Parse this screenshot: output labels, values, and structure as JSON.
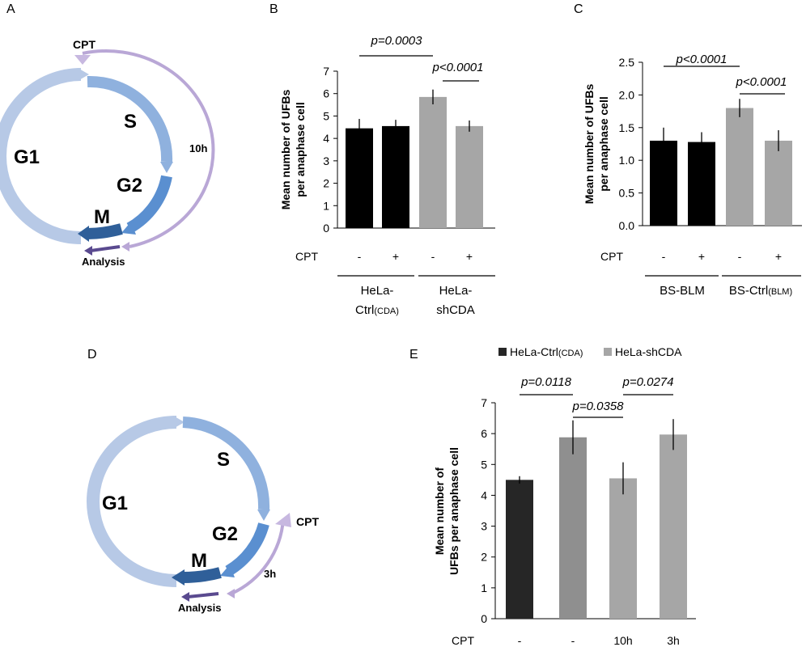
{
  "panels": {
    "A": "A",
    "B": "B",
    "C": "C",
    "D": "D",
    "E": "E"
  },
  "colors": {
    "g1": "#b7c9e6",
    "s": "#8fb1de",
    "g2": "#5a8fd0",
    "m": "#2f5f99",
    "cpt": "#b9a7d6",
    "analysis": "#5a4a8f",
    "black": "#000000",
    "lightgray": "#a6a6a6",
    "darkgray": "#8f8f8f",
    "barE1": "#262626"
  },
  "cycleA": {
    "g1": "G1",
    "s": "S",
    "g2": "G2",
    "m": "M",
    "cpt": "CPT",
    "time": "10h",
    "analysis": "Analysis"
  },
  "cycleD": {
    "g1": "G1",
    "s": "S",
    "g2": "G2",
    "m": "M",
    "cpt": "CPT",
    "time": "3h",
    "analysis": "Analysis"
  },
  "chart_data": [
    {
      "panel": "B",
      "type": "bar",
      "ylabel_line1": "Mean number of UFBs",
      "ylabel_line2": "per anaphase cell",
      "ylim": [
        0,
        7
      ],
      "yticks": [
        "0",
        "1",
        "2",
        "3",
        "4",
        "5",
        "6",
        "7"
      ],
      "row_label": "CPT",
      "categories": [
        "-",
        "+",
        "-",
        "+"
      ],
      "values": [
        4.45,
        4.55,
        5.85,
        4.55
      ],
      "errors": [
        0.42,
        0.28,
        0.33,
        0.25
      ],
      "bar_colors": [
        "#000000",
        "#000000",
        "#a6a6a6",
        "#a6a6a6"
      ],
      "groups": [
        {
          "line1": "HeLa-",
          "line2": "Ctrl",
          "line2_small": "(CDA)"
        },
        {
          "line1": "HeLa-",
          "line2": "shCDA",
          "line2_small": ""
        }
      ],
      "pvalues": [
        "p=0.0003",
        "p<0.0001"
      ]
    },
    {
      "panel": "C",
      "type": "bar",
      "ylabel_line1": "Mean number of UFBs",
      "ylabel_line2": "per anaphase cell",
      "ylim": [
        0,
        2.5
      ],
      "yticks": [
        "0.0",
        "0.5",
        "1.0",
        "1.5",
        "2.0",
        "2.5"
      ],
      "row_label": "CPT",
      "categories": [
        "-",
        "+",
        "-",
        "+"
      ],
      "values": [
        1.3,
        1.28,
        1.8,
        1.3
      ],
      "errors": [
        0.2,
        0.15,
        0.14,
        0.16
      ],
      "bar_colors": [
        "#000000",
        "#000000",
        "#a6a6a6",
        "#a6a6a6"
      ],
      "groups": [
        {
          "line1": "BS-BLM",
          "line2": "",
          "line2_small": ""
        },
        {
          "line1": "BS-Ctrl",
          "line2": "",
          "line2_small": "(BLM)"
        }
      ],
      "pvalues": [
        "p<0.0001",
        "p<0.0001"
      ]
    },
    {
      "panel": "E",
      "type": "bar",
      "ylabel_line1": "Mean number of",
      "ylabel_line2": "UFBs per  anaphase cell",
      "ylim": [
        0,
        7
      ],
      "yticks": [
        "0",
        "1",
        "2",
        "3",
        "4",
        "5",
        "6",
        "7"
      ],
      "row_label": "CPT",
      "categories": [
        "-",
        "-",
        "10h",
        "3h"
      ],
      "values": [
        4.5,
        5.88,
        4.55,
        5.97
      ],
      "errors": [
        0.12,
        0.55,
        0.52,
        0.5
      ],
      "bar_colors": [
        "#262626",
        "#8f8f8f",
        "#a6a6a6",
        "#a6a6a6"
      ],
      "legend": [
        {
          "name": "HeLa-Ctrl",
          "small": "(CDA)",
          "color": "#262626"
        },
        {
          "name": "HeLa-shCDA",
          "small": "",
          "color": "#a6a6a6"
        }
      ],
      "pvalues": [
        "p=0.0118",
        "p=0.0358",
        "p=0.0274"
      ]
    }
  ]
}
